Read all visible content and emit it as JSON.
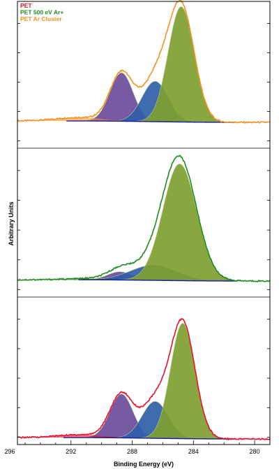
{
  "chart_data": {
    "type": "area",
    "title": "",
    "xlabel": "Binding Energy (eV)",
    "ylabel": "Arbitrary Units",
    "xlim": [
      295.5,
      279.0
    ],
    "x_reversed": true,
    "x_ticks": [
      296,
      292,
      288,
      284,
      280
    ],
    "legend": {
      "placement": "top-left",
      "entries": [
        {
          "name": "PET",
          "color": "#e8102c"
        },
        {
          "name": "PET 500 eV Ar+",
          "color": "#1f8a1f"
        },
        {
          "name": "PET Ar Cluster",
          "color": "#f5921e"
        }
      ]
    },
    "component_colors": {
      "ester_carbon": "#6b4c9a",
      "c_o_carbon": "#2f5fa8",
      "c_c_carbon": "#7fa030",
      "background": "#1a1a9c"
    },
    "panels": [
      {
        "name": "PET Ar Cluster",
        "envelope_color": "#f5921e",
        "peaks": [
          {
            "center": 288.7,
            "height": 0.42,
            "width": 0.75,
            "color": "#6b4c9a"
          },
          {
            "center": 286.5,
            "height": 0.35,
            "width": 0.85,
            "color": "#2f5fa8"
          },
          {
            "center": 284.8,
            "height": 1.0,
            "width": 0.85,
            "color": "#7fa030"
          }
        ],
        "satellite": {
          "center": 291.5,
          "height": 0.03,
          "width": 1.5
        },
        "background": {
          "left": 0.012,
          "right": 0.0,
          "x_range": [
            291.8,
            281.5
          ]
        }
      },
      {
        "name": "PET 500 eV Ar+",
        "envelope_color": "#1f8a1f",
        "peaks": [
          {
            "center": 288.8,
            "height": 0.07,
            "width": 0.8,
            "color": "#6b4c9a"
          },
          {
            "center": 286.6,
            "height": 0.13,
            "width": 1.5,
            "color": "#2f5fa8"
          },
          {
            "center": 284.9,
            "height": 1.0,
            "width": 1.1,
            "color": "#7fa030"
          }
        ],
        "satellite": {
          "center": 291.0,
          "height": 0.01,
          "width": 1.5
        },
        "background": {
          "left": 0.01,
          "right": 0.0,
          "x_range": [
            291.0,
            281.5
          ]
        }
      },
      {
        "name": "PET",
        "envelope_color": "#e8102c",
        "peaks": [
          {
            "center": 288.7,
            "height": 0.38,
            "width": 0.75,
            "color": "#6b4c9a"
          },
          {
            "center": 286.5,
            "height": 0.32,
            "width": 0.85,
            "color": "#2f5fa8"
          },
          {
            "center": 284.7,
            "height": 1.0,
            "width": 0.8,
            "color": "#7fa030"
          }
        ],
        "satellite": {
          "center": 291.4,
          "height": 0.025,
          "width": 1.5
        },
        "background": {
          "left": 0.012,
          "right": 0.0,
          "x_range": [
            292.0,
            281.5
          ]
        }
      }
    ]
  }
}
